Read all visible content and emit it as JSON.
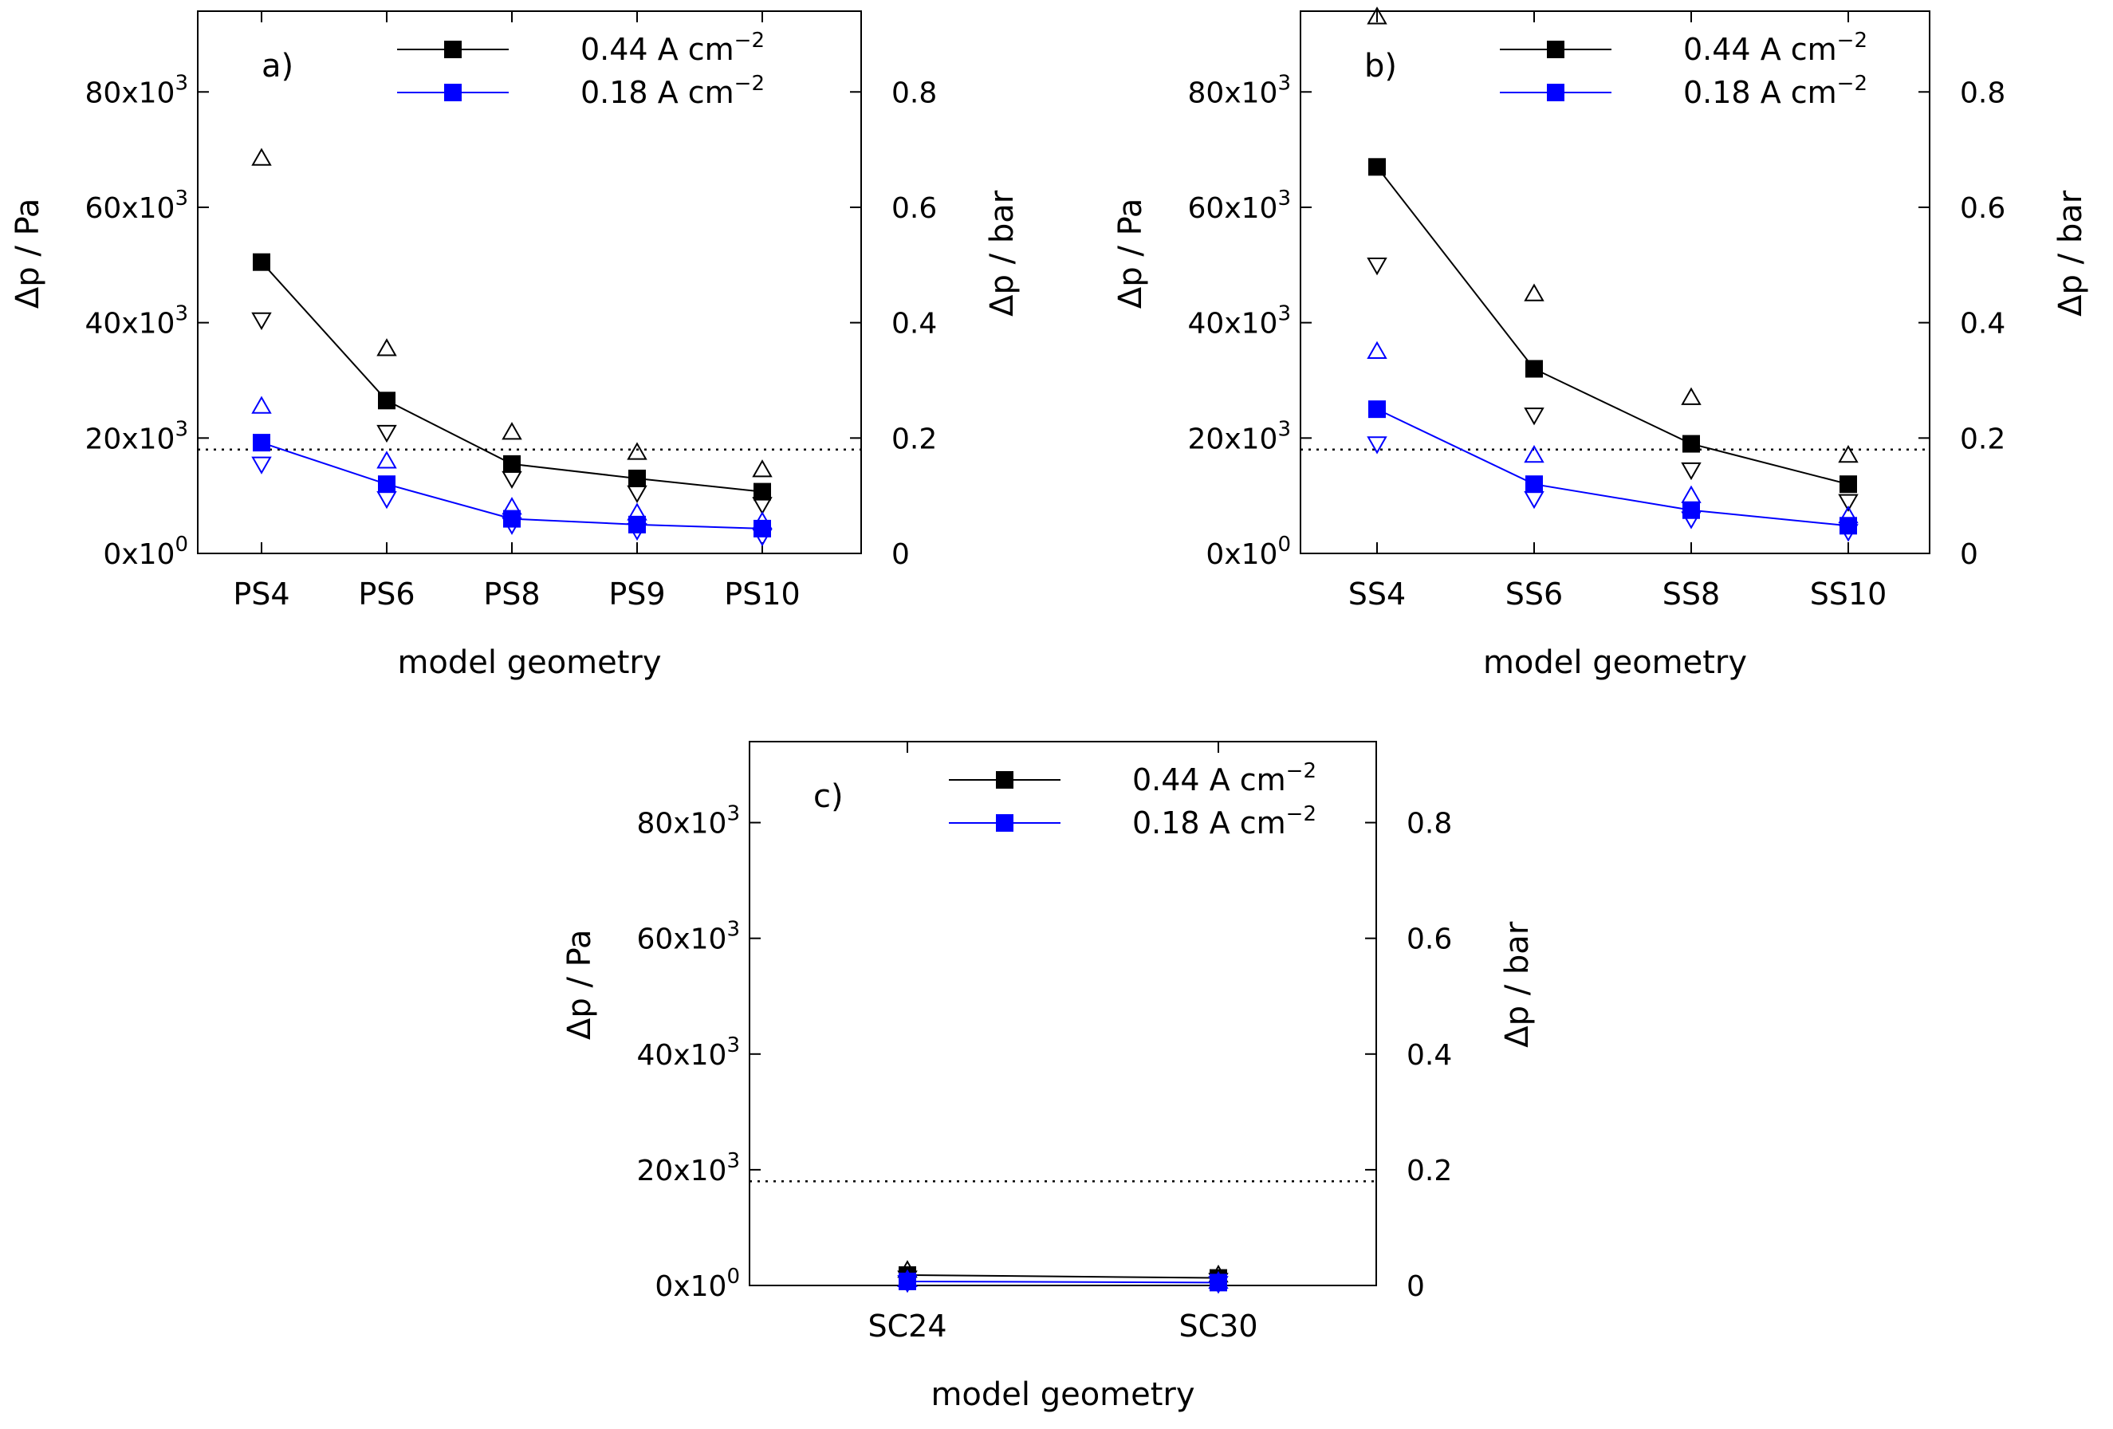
{
  "colors": {
    "series_black": "#000000",
    "series_blue": "#0000ff",
    "axis": "#000000"
  },
  "legend_marker": "filled-square-icon",
  "chart_data": [
    {
      "type": "line",
      "panel_label": "a)",
      "xlabel": "model geometry",
      "ylabel": "Δp / Pa",
      "y2label": "Δp / bar",
      "ylim": [
        0,
        94000
      ],
      "y_ticks": [
        {
          "value": 0,
          "mantissa": "0x10",
          "exp": "0"
        },
        {
          "value": 20000,
          "mantissa": "20x10",
          "exp": "3"
        },
        {
          "value": 40000,
          "mantissa": "40x10",
          "exp": "3"
        },
        {
          "value": 60000,
          "mantissa": "60x10",
          "exp": "3"
        },
        {
          "value": 80000,
          "mantissa": "80x10",
          "exp": "3"
        }
      ],
      "y2_ticks": [
        {
          "value": 0,
          "label": "0"
        },
        {
          "value": 20000,
          "label": "0.2"
        },
        {
          "value": 40000,
          "label": "0.4"
        },
        {
          "value": 60000,
          "label": "0.6"
        },
        {
          "value": 80000,
          "label": "0.8"
        }
      ],
      "reference_line": 18000,
      "categories": [
        "PS4",
        "PS6",
        "PS8",
        "PS9",
        "PS10"
      ],
      "series": [
        {
          "name": "0.44 A cm",
          "exp": "−2",
          "color": "#000000",
          "values": [
            50500,
            26500,
            15500,
            13000,
            10700
          ],
          "upper": [
            68500,
            35500,
            21000,
            17500,
            14500
          ],
          "lower": [
            40500,
            21000,
            13000,
            10500,
            8500
          ]
        },
        {
          "name": "0.18 A cm",
          "exp": "−2",
          "color": "#0000ff",
          "values": [
            19200,
            12000,
            6000,
            5000,
            4300
          ],
          "upper": [
            25500,
            16000,
            8000,
            7000,
            5500
          ],
          "lower": [
            15500,
            9500,
            5000,
            4000,
            3000
          ]
        }
      ]
    },
    {
      "type": "line",
      "panel_label": "b)",
      "xlabel": "model geometry",
      "ylabel": "Δp / Pa",
      "y2label": "Δp / bar",
      "ylim": [
        0,
        94000
      ],
      "y_ticks": [
        {
          "value": 0,
          "mantissa": "0x10",
          "exp": "0"
        },
        {
          "value": 20000,
          "mantissa": "20x10",
          "exp": "3"
        },
        {
          "value": 40000,
          "mantissa": "40x10",
          "exp": "3"
        },
        {
          "value": 60000,
          "mantissa": "60x10",
          "exp": "3"
        },
        {
          "value": 80000,
          "mantissa": "80x10",
          "exp": "3"
        }
      ],
      "y2_ticks": [
        {
          "value": 0,
          "label": "0"
        },
        {
          "value": 20000,
          "label": "0.2"
        },
        {
          "value": 40000,
          "label": "0.4"
        },
        {
          "value": 60000,
          "label": "0.6"
        },
        {
          "value": 80000,
          "label": "0.8"
        }
      ],
      "reference_line": 18000,
      "categories": [
        "SS4",
        "SS6",
        "SS8",
        "SS10"
      ],
      "series": [
        {
          "name": "0.44 A cm",
          "exp": "−2",
          "color": "#000000",
          "values": [
            67000,
            32000,
            19000,
            12000
          ],
          "upper": [
            93000,
            45000,
            27000,
            17000
          ],
          "lower": [
            50000,
            24000,
            14500,
            9000
          ]
        },
        {
          "name": "0.18 A cm",
          "exp": "−2",
          "color": "#0000ff",
          "values": [
            25000,
            12000,
            7500,
            4800
          ],
          "upper": [
            35000,
            17000,
            10000,
            6500
          ],
          "lower": [
            19000,
            9500,
            6000,
            3800
          ]
        }
      ]
    },
    {
      "type": "line",
      "panel_label": "c)",
      "xlabel": "model geometry",
      "ylabel": "Δp / Pa",
      "y2label": "Δp / bar",
      "ylim": [
        0,
        94000
      ],
      "y_ticks": [
        {
          "value": 0,
          "mantissa": "0x10",
          "exp": "0"
        },
        {
          "value": 20000,
          "mantissa": "20x10",
          "exp": "3"
        },
        {
          "value": 40000,
          "mantissa": "40x10",
          "exp": "3"
        },
        {
          "value": 60000,
          "mantissa": "60x10",
          "exp": "3"
        },
        {
          "value": 80000,
          "mantissa": "80x10",
          "exp": "3"
        }
      ],
      "y2_ticks": [
        {
          "value": 0,
          "label": "0"
        },
        {
          "value": 20000,
          "label": "0.2"
        },
        {
          "value": 40000,
          "label": "0.4"
        },
        {
          "value": 60000,
          "label": "0.6"
        },
        {
          "value": 80000,
          "label": "0.8"
        }
      ],
      "reference_line": 18000,
      "categories": [
        "SC24",
        "SC30"
      ],
      "series": [
        {
          "name": "0.44 A cm",
          "exp": "−2",
          "color": "#000000",
          "values": [
            1800,
            1300
          ],
          "upper": [
            2600,
            1800
          ],
          "lower": [
            1300,
            900
          ]
        },
        {
          "name": "0.18 A cm",
          "exp": "−2",
          "color": "#0000ff",
          "values": [
            700,
            500
          ],
          "upper": [
            1000,
            700
          ],
          "lower": [
            500,
            350
          ]
        }
      ]
    }
  ]
}
